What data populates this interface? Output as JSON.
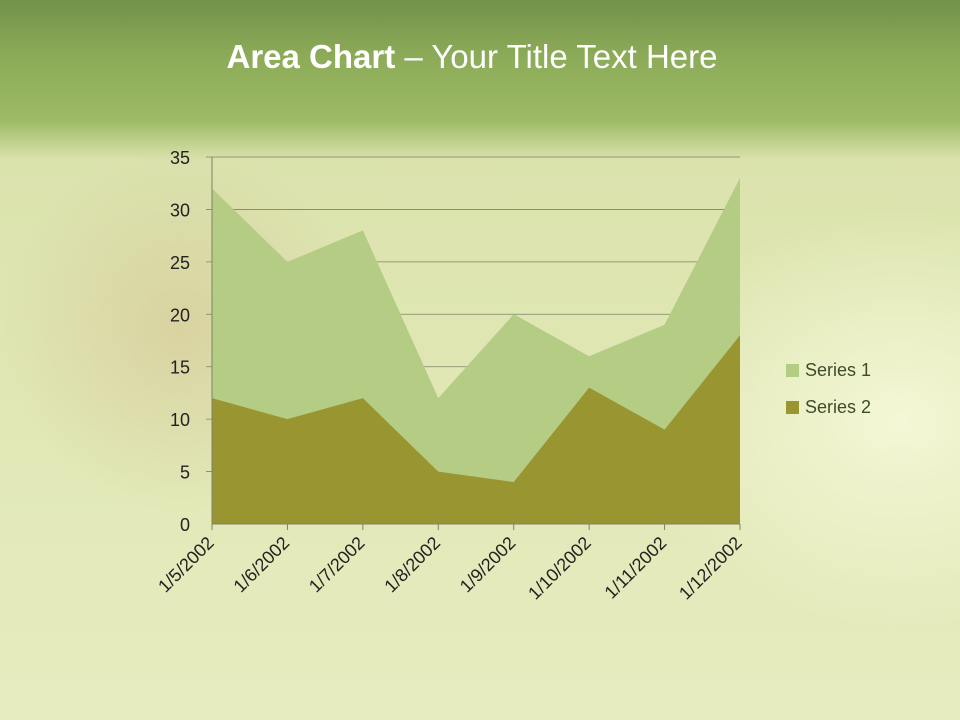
{
  "slide": {
    "title_bold": "Area Chart",
    "title_rest": " – Your Title Text Here"
  },
  "colors": {
    "series1": "#b5cc85",
    "series2": "#999632",
    "grid": "#7c8468",
    "axis_text": "#222222"
  },
  "chart_data": {
    "type": "area",
    "stacked": true,
    "title": "Area Chart – Your Title Text Here",
    "categories": [
      "1/5/2002",
      "1/6/2002",
      "1/7/2002",
      "1/8/2002",
      "1/9/2002",
      "1/10/2002",
      "1/11/2002",
      "1/12/2002"
    ],
    "series": [
      {
        "name": "Series 1",
        "values": [
          20,
          15,
          16,
          7,
          16,
          3,
          10,
          15
        ]
      },
      {
        "name": "Series 2",
        "values": [
          12,
          10,
          12,
          5,
          4,
          13,
          9,
          18
        ]
      }
    ],
    "yticks": [
      "0",
      "5",
      "10",
      "15",
      "20",
      "25",
      "30",
      "35"
    ],
    "ylim": [
      0,
      35
    ],
    "grid": true,
    "legend": "right"
  }
}
